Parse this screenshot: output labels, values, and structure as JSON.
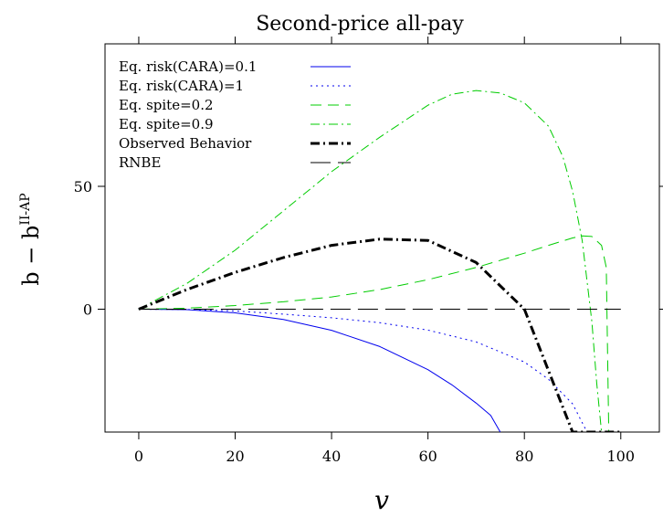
{
  "chart_data": {
    "type": "line",
    "title": "Second-price all-pay",
    "xlabel": "v",
    "ylabel": {
      "base": "b − b",
      "superscript": "II-AP"
    },
    "xlim": [
      -7,
      108
    ],
    "ylim": [
      -50,
      108
    ],
    "x_ticks": [
      0,
      20,
      40,
      60,
      80,
      100
    ],
    "y_ticks": [
      0,
      50
    ],
    "grid": false,
    "legend_position": "top-left",
    "series": [
      {
        "name": "Eq. risk(CARA)=0.1",
        "color": "#0000ee",
        "dash": "solid",
        "width": 1,
        "x": [
          0,
          10,
          20,
          30,
          40,
          50,
          60,
          65,
          70,
          73,
          75
        ],
        "y": [
          0,
          -0.2,
          -1.5,
          -4.2,
          -8.6,
          -15.2,
          -24.6,
          -30.8,
          -38.2,
          -43.2,
          -50
        ]
      },
      {
        "name": "Eq. risk(CARA)=1",
        "color": "#0000ee",
        "dash": "dotted",
        "width": 1,
        "x": [
          0,
          10,
          20,
          30,
          40,
          50,
          60,
          70,
          80,
          85,
          90,
          93
        ],
        "y": [
          0,
          -0.1,
          -0.7,
          -2.0,
          -3.5,
          -5.5,
          -8.5,
          -13.3,
          -21.5,
          -28.5,
          -38.5,
          -50
        ]
      },
      {
        "name": "Eq. spite=0.2",
        "color": "#00cc00",
        "dash": "dashed",
        "width": 1,
        "x": [
          0,
          10,
          20,
          30,
          40,
          50,
          60,
          70,
          80,
          85,
          90,
          92,
          94,
          96,
          97,
          97.5
        ],
        "y": [
          0,
          0.4,
          1.5,
          3.0,
          5.0,
          8.0,
          12.0,
          17.0,
          22.8,
          26.0,
          29.0,
          29.8,
          29.6,
          26.0,
          17.0,
          -50
        ]
      },
      {
        "name": "Eq. spite=0.9",
        "color": "#00cc00",
        "dash": "dashdot",
        "width": 1,
        "x": [
          0,
          10,
          20,
          30,
          40,
          50,
          60,
          65,
          70,
          75,
          80,
          85,
          88,
          90,
          92,
          94,
          95,
          96
        ],
        "y": [
          0,
          10.5,
          24.0,
          40.0,
          56.0,
          70.0,
          83.0,
          87.5,
          89.0,
          88.0,
          84.0,
          74.5,
          62.0,
          48.0,
          28.0,
          -5.0,
          -30.0,
          -50
        ]
      },
      {
        "name": "Observed Behavior",
        "color": "#000000",
        "dash": "dashdot",
        "width": 3,
        "x": [
          0,
          10,
          20,
          30,
          40,
          50,
          60,
          70,
          80,
          90,
          100
        ],
        "y": [
          0,
          8.0,
          15.0,
          21.0,
          26.0,
          28.5,
          28.0,
          19.0,
          0,
          -50,
          -50
        ]
      },
      {
        "name": "RNBE",
        "color": "#000000",
        "dash": "longdash",
        "width": 1,
        "x": [
          0,
          100
        ],
        "y": [
          0,
          0
        ]
      }
    ]
  }
}
